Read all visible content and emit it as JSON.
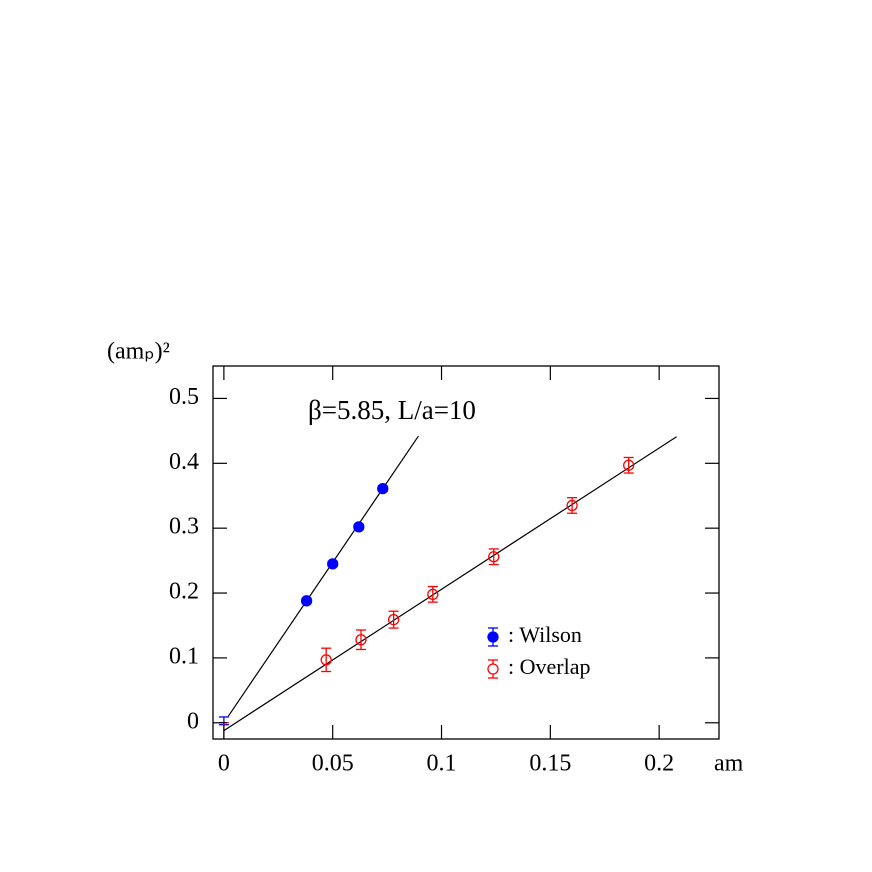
{
  "chart_data": {
    "type": "scatter",
    "x_label": "am",
    "y_label": "(amₚ)²",
    "annotation": "β=5.85, L/a=10",
    "xlim": [
      -0.005,
      0.2275
    ],
    "ylim": [
      -0.025,
      0.55
    ],
    "xticks": [
      0,
      0.05,
      0.1,
      0.15,
      0.2
    ],
    "yticks": [
      0,
      0.1,
      0.2,
      0.3,
      0.4,
      0.5
    ],
    "series": [
      {
        "name": ": Wilson",
        "color": "#0000ff",
        "marker": "filled",
        "x": [
          0,
          0.038,
          0.05,
          0.062,
          0.073
        ],
        "values": [
          0.003,
          0.188,
          0.245,
          0.302,
          0.361
        ],
        "errors": [
          0.006,
          0.004,
          0.004,
          0.004,
          0.004
        ]
      },
      {
        "name": ": Overlap",
        "color": "#ff0000",
        "marker": "open",
        "x": [
          0,
          0.047,
          0.063,
          0.078,
          0.096,
          0.124,
          0.16,
          0.186
        ],
        "values": [
          -0.015,
          0.097,
          0.128,
          0.159,
          0.198,
          0.256,
          0.335,
          0.397
        ],
        "errors": [
          0.015,
          0.018,
          0.015,
          0.013,
          0.012,
          0.012,
          0.012,
          0.012
        ]
      }
    ],
    "fits": [
      {
        "color": "#000000",
        "x": [
          0.002,
          0.0894
        ],
        "values": [
          0.01,
          0.442
        ]
      },
      {
        "color": "#000000",
        "x": [
          0,
          0.208
        ],
        "values": [
          -0.012,
          0.441
        ]
      }
    ]
  }
}
